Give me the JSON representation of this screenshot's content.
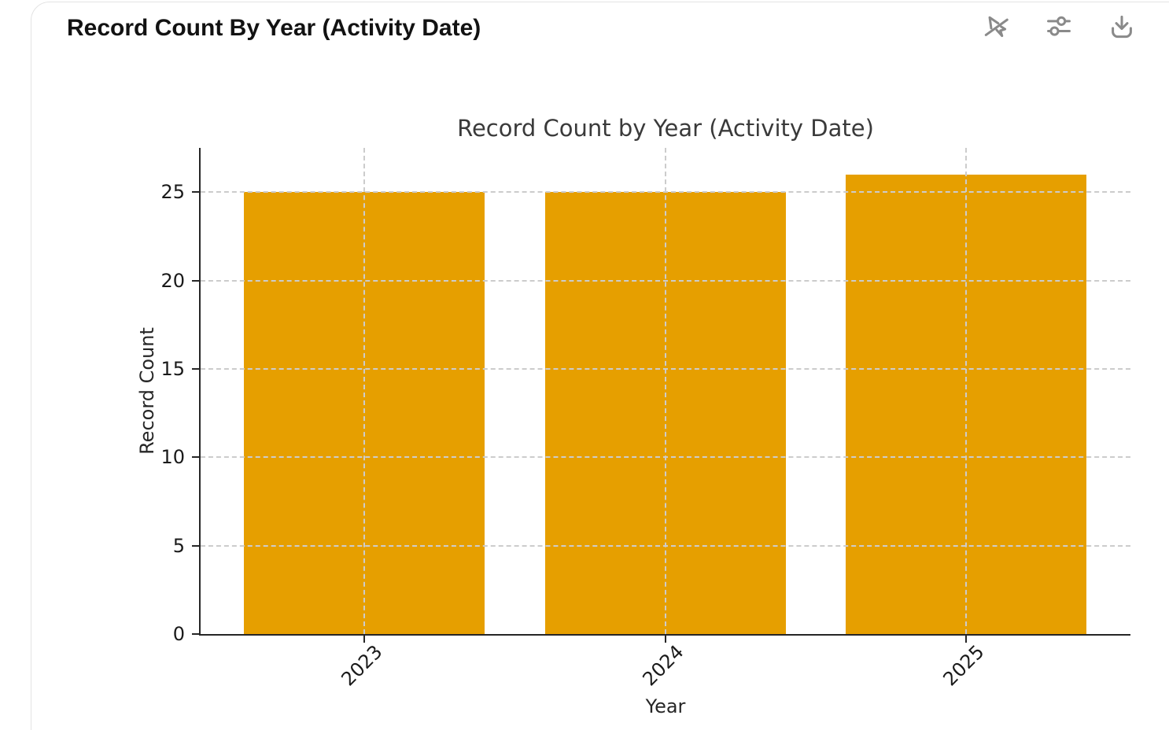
{
  "header": {
    "title": "Record Count By Year (Activity Date)",
    "icons": [
      {
        "name": "interactivity-off-icon"
      },
      {
        "name": "settings-sliders-icon"
      },
      {
        "name": "download-icon"
      }
    ]
  },
  "chart_data": {
    "type": "bar",
    "title": "Record Count by Year (Activity Date)",
    "categories": [
      "2023",
      "2024",
      "2025"
    ],
    "values": [
      25,
      25,
      26
    ],
    "xlabel": "Year",
    "ylabel": "Record Count",
    "ylim": [
      0,
      27.5
    ],
    "yticks": [
      0,
      5,
      10,
      15,
      20,
      25
    ],
    "bar_color": "#E69F00",
    "grid": true,
    "grid_style": "dashed",
    "gridline_color": "#cccccc",
    "legend": "none"
  }
}
